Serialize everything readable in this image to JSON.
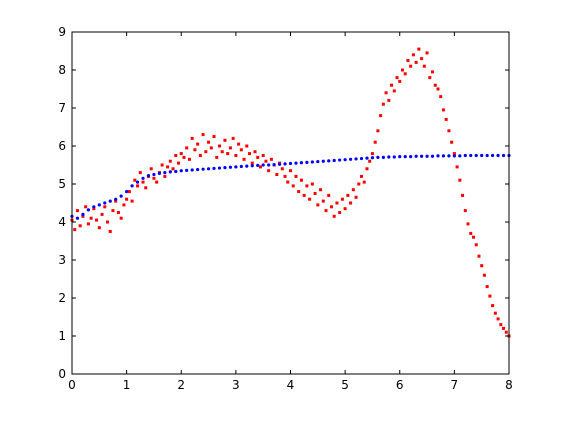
{
  "chart_data": {
    "type": "scatter",
    "title": "",
    "xlabel": "",
    "ylabel": "",
    "xlim": [
      0,
      8
    ],
    "ylim": [
      0,
      9
    ],
    "x_ticks": [
      "0",
      "1",
      "2",
      "3",
      "4",
      "5",
      "6",
      "7",
      "8"
    ],
    "y_ticks": [
      "0",
      "1",
      "2",
      "3",
      "4",
      "5",
      "6",
      "7",
      "8",
      "9"
    ],
    "grid": false,
    "legend": "none",
    "series": [
      {
        "marker": "red-point",
        "color": "#ff0000",
        "x": [
          0.0,
          0.05,
          0.1,
          0.15,
          0.2,
          0.25,
          0.3,
          0.35,
          0.4,
          0.45,
          0.5,
          0.55,
          0.6,
          0.65,
          0.7,
          0.75,
          0.8,
          0.85,
          0.9,
          0.95,
          1.0,
          1.05,
          1.1,
          1.15,
          1.2,
          1.25,
          1.3,
          1.35,
          1.4,
          1.45,
          1.5,
          1.55,
          1.6,
          1.65,
          1.7,
          1.75,
          1.8,
          1.85,
          1.9,
          1.95,
          2.0,
          2.05,
          2.1,
          2.15,
          2.2,
          2.25,
          2.3,
          2.35,
          2.4,
          2.45,
          2.5,
          2.55,
          2.6,
          2.65,
          2.7,
          2.75,
          2.8,
          2.85,
          2.9,
          2.95,
          3.0,
          3.05,
          3.1,
          3.15,
          3.2,
          3.25,
          3.3,
          3.35,
          3.4,
          3.45,
          3.5,
          3.55,
          3.6,
          3.65,
          3.7,
          3.75,
          3.8,
          3.85,
          3.9,
          3.95,
          4.0,
          4.05,
          4.1,
          4.15,
          4.2,
          4.25,
          4.3,
          4.35,
          4.4,
          4.45,
          4.5,
          4.55,
          4.6,
          4.65,
          4.7,
          4.75,
          4.8,
          4.85,
          4.9,
          4.95,
          5.0,
          5.05,
          5.1,
          5.15,
          5.2,
          5.25,
          5.3,
          5.35,
          5.4,
          5.45,
          5.5,
          5.55,
          5.6,
          5.65,
          5.7,
          5.75,
          5.8,
          5.85,
          5.9,
          5.95,
          6.0,
          6.05,
          6.1,
          6.15,
          6.2,
          6.25,
          6.3,
          6.35,
          6.4,
          6.45,
          6.5,
          6.55,
          6.6,
          6.65,
          6.7,
          6.75,
          6.8,
          6.85,
          6.9,
          6.95,
          7.0,
          7.05,
          7.1,
          7.15,
          7.2,
          7.25,
          7.3,
          7.35,
          7.4,
          7.45,
          7.5,
          7.55,
          7.6,
          7.65,
          7.7,
          7.75,
          7.8,
          7.85,
          7.9,
          7.95,
          8.0
        ],
        "y": [
          4.05,
          3.8,
          4.3,
          3.9,
          4.15,
          4.4,
          3.95,
          4.1,
          4.35,
          4.05,
          3.85,
          4.2,
          4.4,
          4.0,
          3.75,
          4.3,
          4.55,
          4.25,
          4.1,
          4.45,
          4.6,
          4.8,
          4.55,
          5.1,
          4.95,
          5.3,
          5.05,
          4.9,
          5.2,
          5.4,
          5.15,
          5.05,
          5.3,
          5.5,
          5.2,
          5.45,
          5.6,
          5.4,
          5.75,
          5.55,
          5.8,
          5.7,
          5.95,
          5.65,
          6.2,
          5.9,
          6.05,
          5.75,
          6.3,
          5.85,
          6.1,
          5.95,
          6.25,
          5.7,
          6.0,
          5.85,
          6.15,
          5.8,
          5.95,
          6.2,
          5.75,
          6.05,
          5.9,
          5.65,
          6.0,
          5.8,
          5.55,
          5.85,
          5.7,
          5.45,
          5.75,
          5.6,
          5.35,
          5.65,
          5.5,
          5.25,
          5.55,
          5.4,
          5.2,
          5.05,
          5.35,
          4.95,
          5.2,
          4.8,
          5.1,
          4.7,
          4.95,
          4.6,
          5.0,
          4.75,
          4.45,
          4.85,
          4.55,
          4.3,
          4.7,
          4.4,
          4.15,
          4.5,
          4.25,
          4.6,
          4.35,
          4.7,
          4.5,
          4.85,
          4.65,
          5.0,
          5.2,
          5.05,
          5.4,
          5.6,
          5.8,
          6.1,
          6.4,
          6.8,
          7.1,
          7.4,
          7.2,
          7.6,
          7.45,
          7.8,
          7.7,
          8.0,
          7.9,
          8.25,
          8.1,
          8.4,
          8.2,
          8.55,
          8.3,
          8.1,
          8.45,
          7.8,
          7.95,
          7.6,
          7.5,
          7.3,
          6.95,
          6.7,
          6.4,
          6.1,
          5.8,
          5.45,
          5.1,
          4.7,
          4.3,
          3.95,
          3.7,
          3.6,
          3.4,
          3.1,
          2.85,
          2.6,
          2.3,
          2.05,
          1.8,
          1.6,
          1.45,
          1.3,
          1.2,
          1.1,
          1.0
        ]
      },
      {
        "marker": "blue-point",
        "color": "#0000ff",
        "x": [
          0.0,
          0.1,
          0.2,
          0.3,
          0.4,
          0.5,
          0.6,
          0.7,
          0.8,
          0.9,
          1.0,
          1.1,
          1.2,
          1.3,
          1.4,
          1.5,
          1.6,
          1.7,
          1.8,
          1.9,
          2.0,
          2.1,
          2.2,
          2.3,
          2.4,
          2.5,
          2.6,
          2.7,
          2.8,
          2.9,
          3.0,
          3.1,
          3.2,
          3.3,
          3.4,
          3.5,
          3.6,
          3.7,
          3.8,
          3.9,
          4.0,
          4.1,
          4.2,
          4.3,
          4.4,
          4.5,
          4.6,
          4.7,
          4.8,
          4.9,
          5.0,
          5.1,
          5.2,
          5.3,
          5.4,
          5.5,
          5.6,
          5.7,
          5.8,
          5.9,
          6.0,
          6.1,
          6.2,
          6.3,
          6.4,
          6.5,
          6.6,
          6.7,
          6.8,
          6.9,
          7.0,
          7.1,
          7.2,
          7.3,
          7.4,
          7.5,
          7.6,
          7.7,
          7.8,
          7.9,
          8.0
        ],
        "y": [
          4.15,
          4.1,
          4.2,
          4.32,
          4.4,
          4.45,
          4.5,
          4.55,
          4.6,
          4.68,
          4.8,
          4.95,
          5.05,
          5.15,
          5.22,
          5.25,
          5.28,
          5.3,
          5.32,
          5.33,
          5.35,
          5.36,
          5.37,
          5.38,
          5.39,
          5.4,
          5.41,
          5.42,
          5.43,
          5.44,
          5.45,
          5.46,
          5.47,
          5.48,
          5.49,
          5.5,
          5.5,
          5.51,
          5.52,
          5.53,
          5.54,
          5.55,
          5.56,
          5.57,
          5.58,
          5.59,
          5.6,
          5.61,
          5.62,
          5.63,
          5.64,
          5.65,
          5.66,
          5.67,
          5.68,
          5.69,
          5.7,
          5.7,
          5.71,
          5.71,
          5.72,
          5.72,
          5.72,
          5.73,
          5.73,
          5.73,
          5.73,
          5.74,
          5.74,
          5.74,
          5.74,
          5.74,
          5.75,
          5.75,
          5.75,
          5.75,
          5.75,
          5.75,
          5.75,
          5.75,
          5.75
        ]
      }
    ]
  }
}
